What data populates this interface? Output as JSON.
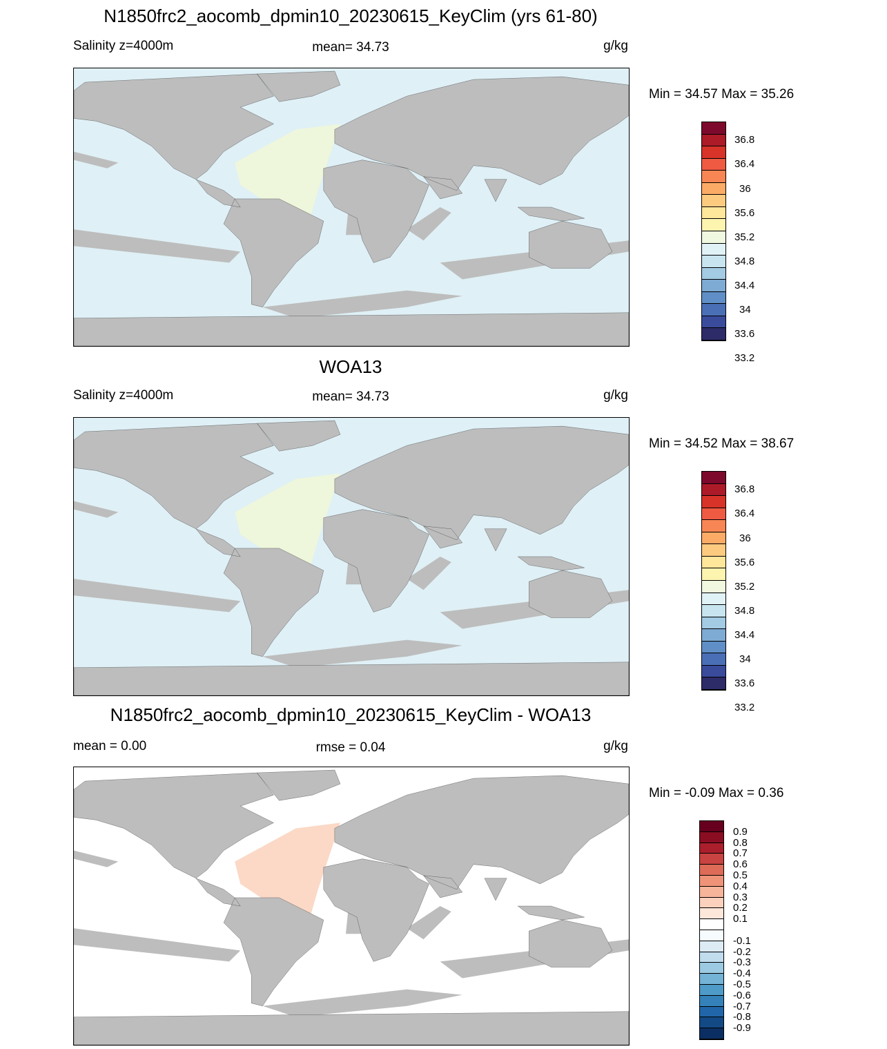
{
  "colors": {
    "land": "#bdbdbd",
    "coast": "#000000"
  },
  "panels": [
    {
      "title": "N1850frc2_aocomb_dpmin10_20230615_KeyClim (yrs 61-80)",
      "left_label": "Salinity z=4000m",
      "center_label": "mean=  34.73",
      "right_label": "g/kg",
      "minmax": "Min =  34.57 Max =  35.26",
      "ocean_color": "#dff0f6",
      "highlight_color": "#eef6dc",
      "cbar_colors": [
        "#2d2b68",
        "#3a4b9c",
        "#4a6fb6",
        "#5f8fc6",
        "#7eabd4",
        "#a3cbe3",
        "#c7e4ef",
        "#e1f2f7",
        "#f1f8e0",
        "#fdf4b0",
        "#fee69a",
        "#fdcb80",
        "#fcab66",
        "#f88654",
        "#ef5a42",
        "#d73329",
        "#ad1a28",
        "#7d0a2c"
      ],
      "cbar_labels": [
        "36.8",
        "36.4",
        "36",
        "35.6",
        "35.2",
        "34.8",
        "34.4",
        "34",
        "33.6",
        "33.2"
      ]
    },
    {
      "title": "WOA13",
      "left_label": "Salinity z=4000m",
      "center_label": "mean=  34.73",
      "right_label": "g/kg",
      "minmax": "Min =  34.52 Max =  38.67",
      "ocean_color": "#dff0f6",
      "highlight_color": "#eef6dc",
      "cbar_colors": [
        "#2d2b68",
        "#3a4b9c",
        "#4a6fb6",
        "#5f8fc6",
        "#7eabd4",
        "#a3cbe3",
        "#c7e4ef",
        "#e1f2f7",
        "#f1f8e0",
        "#fdf4b0",
        "#fee69a",
        "#fdcb80",
        "#fcab66",
        "#f88654",
        "#ef5a42",
        "#d73329",
        "#ad1a28",
        "#7d0a2c"
      ],
      "cbar_labels": [
        "36.8",
        "36.4",
        "36",
        "35.6",
        "35.2",
        "34.8",
        "34.4",
        "34",
        "33.6",
        "33.2"
      ]
    },
    {
      "title": "N1850frc2_aocomb_dpmin10_20230615_KeyClim - WOA13",
      "left_label": "mean =   0.00",
      "center_label": "rmse =   0.04",
      "right_label": "g/kg",
      "minmax": "Min =  -0.09 Max =   0.36",
      "ocean_color": "#ffffff",
      "highlight_color": "#fbd9c6",
      "cbar_colors": [
        "#0b2f62",
        "#134a86",
        "#2166a8",
        "#3582ba",
        "#4e9bc8",
        "#74b3d6",
        "#9ccae2",
        "#c0dced",
        "#dcebf4",
        "#f6fbfd",
        "#ffffff",
        "#fde6da",
        "#fbd0bc",
        "#f6b49a",
        "#ef9378",
        "#dd6b57",
        "#c84341",
        "#ab1f2d",
        "#8a0d22",
        "#67001f"
      ],
      "cbar_labels": [
        "0.9",
        "0.8",
        "0.7",
        "0.6",
        "0.5",
        "0.4",
        "0.3",
        "0.2",
        "0.1",
        "-0.1",
        "-0.2",
        "-0.3",
        "-0.4",
        "-0.5",
        "-0.6",
        "-0.7",
        "-0.8",
        "-0.9"
      ]
    }
  ]
}
